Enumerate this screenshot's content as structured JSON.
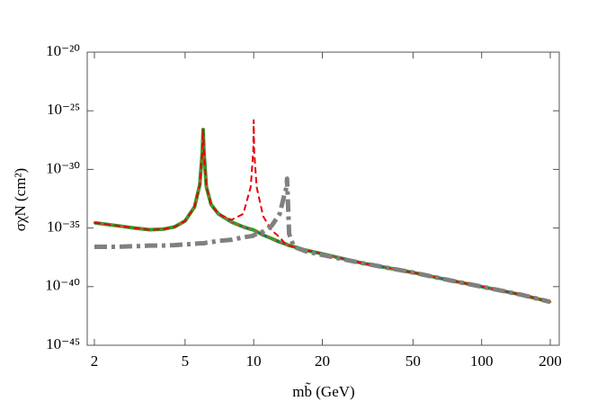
{
  "chart_data": {
    "type": "line",
    "xlabel": "mb̃ (GeV)",
    "ylabel": "σχN (cm²)",
    "xscale": "log",
    "yscale": "log",
    "grid": false,
    "xlim": [
      1.86,
      219
    ],
    "ylim": [
      1e-45,
      1e-20
    ],
    "xticks": [
      2,
      5,
      10,
      20,
      50,
      100,
      200
    ],
    "yticks": [
      {
        "value": 1e-45,
        "label": "10⁻⁴⁵"
      },
      {
        "value": 1e-40,
        "label": "10⁻⁴⁰"
      },
      {
        "value": 1e-35,
        "label": "10⁻³⁵"
      },
      {
        "value": 1e-30,
        "label": "10⁻³⁰"
      },
      {
        "value": 1e-25,
        "label": "10⁻²⁵"
      },
      {
        "value": 1e-20,
        "label": "10⁻²⁰"
      }
    ],
    "x": [
      2,
      2.5,
      3,
      3.5,
      4,
      4.5,
      5,
      5.5,
      5.8,
      5.95,
      6,
      6.05,
      6.2,
      6.5,
      7,
      8,
      9,
      9.7,
      9.95,
      10,
      10.05,
      10.3,
      11,
      12,
      13,
      13.7,
      13.95,
      14,
      14.05,
      14.3,
      15,
      17,
      20,
      30,
      50,
      70,
      100,
      150,
      200
    ],
    "series": [
      {
        "color": "#2ca02c",
        "style": "solid",
        "values": [
          2.8e-35,
          1.6e-35,
          1e-35,
          7.1e-36,
          7.9e-36,
          1.26e-35,
          4e-35,
          6.3e-34,
          5e-32,
          3.2e-29,
          2.5e-27,
          3.2e-29,
          3.2e-32,
          1e-33,
          1.6e-34,
          3.2e-35,
          1.26e-35,
          7.9e-36,
          7.1e-36,
          6.6e-36,
          6.3e-36,
          5e-36,
          2.5e-36,
          1.26e-36,
          6.3e-37,
          4.5e-37,
          4e-37,
          3.8e-37,
          3.7e-37,
          3.2e-37,
          2.5e-37,
          1.26e-37,
          6.3e-38,
          1e-38,
          1.6e-39,
          4e-40,
          1e-40,
          2e-41,
          5e-42
        ]
      },
      {
        "color": "#1f5fa0",
        "style": "dashed",
        "values": [
          2.8e-35,
          1.6e-35,
          1e-35,
          7.1e-36,
          7.9e-36,
          1.26e-35,
          4e-35,
          6.3e-34,
          5e-32,
          3.2e-29,
          2.5e-27,
          3.2e-29,
          3.2e-32,
          1e-33,
          1.6e-34,
          3.2e-35,
          1.26e-35,
          7.9e-36,
          7.1e-36,
          6.6e-36,
          6.3e-36,
          5e-36,
          2.5e-36,
          1.26e-36,
          6.3e-37,
          4.5e-37,
          4e-37,
          3.8e-37,
          3.7e-37,
          3.2e-37,
          2.5e-37,
          1.26e-37,
          6.3e-38,
          1e-38,
          1.6e-39,
          4e-40,
          1e-40,
          2e-41,
          5e-42
        ]
      },
      {
        "color": "#b5651d",
        "style": "dotted",
        "values": [
          2.8e-35,
          1.6e-35,
          1e-35,
          7.1e-36,
          7.9e-36,
          1.26e-35,
          4e-35,
          6.3e-34,
          5e-32,
          3.2e-29,
          2.5e-27,
          3.2e-29,
          3.2e-32,
          1e-33,
          1.6e-34,
          3.2e-35,
          1.26e-35,
          7.9e-36,
          7.1e-36,
          6.6e-36,
          6.3e-36,
          5e-36,
          2.5e-36,
          1.26e-36,
          6.3e-37,
          4.5e-37,
          4e-37,
          3.8e-37,
          3.7e-37,
          3.2e-37,
          2.5e-37,
          1.26e-37,
          6.3e-38,
          1e-38,
          1.6e-39,
          4e-40,
          1e-40,
          2e-41,
          5e-42
        ]
      },
      {
        "color": "#e8000b",
        "style": "dashed",
        "values": [
          2.8e-35,
          1.6e-35,
          1e-35,
          7.1e-36,
          7.9e-36,
          1.26e-35,
          4e-35,
          6.3e-34,
          5e-32,
          3.2e-29,
          2.5e-27,
          3.2e-29,
          3.2e-32,
          1e-33,
          1.6e-34,
          5e-35,
          1.6e-34,
          3.2e-32,
          3.2e-29,
          1.6e-26,
          3.2e-29,
          3.2e-32,
          1e-34,
          6.3e-36,
          1.6e-36,
          5e-37,
          4.2e-37,
          4e-37,
          3.8e-37,
          3.2e-37,
          2.5e-37,
          1.26e-37,
          6.3e-38,
          1e-38,
          1.6e-39,
          4e-40,
          1e-40,
          2e-41,
          5e-42
        ]
      },
      {
        "color": "#808080",
        "style": "dashdot",
        "values": [
          2.5e-37,
          2.5e-37,
          2.8e-37,
          3.2e-37,
          3.2e-37,
          3.5e-37,
          4e-37,
          4.5e-37,
          5e-37,
          5e-37,
          5e-37,
          5e-37,
          5.6e-37,
          6.3e-37,
          7.9e-37,
          1e-36,
          1.6e-36,
          2e-36,
          2.2e-36,
          2.5e-36,
          2.5e-36,
          3.2e-36,
          5e-36,
          1.6e-35,
          1.6e-34,
          1e-32,
          3.2e-32,
          1.6e-31,
          3.2e-32,
          3.2e-36,
          2.5e-37,
          1e-37,
          5e-38,
          1e-38,
          1.6e-39,
          4e-40,
          1e-40,
          2e-41,
          5e-42
        ]
      }
    ]
  }
}
